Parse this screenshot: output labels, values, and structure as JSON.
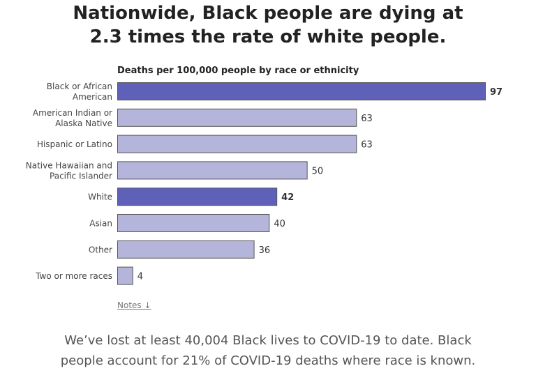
{
  "title_lines": [
    "Nationwide, Black people are dying at",
    "2.3 times the rate of white people."
  ],
  "chart_data": {
    "type": "bar",
    "orientation": "horizontal",
    "title": "Deaths per 100,000 people by race or ethnicity",
    "categories": [
      [
        "Black or African",
        "American"
      ],
      [
        "American Indian or",
        "Alaska Native"
      ],
      [
        "Hispanic or Latino"
      ],
      [
        "Native Hawaiian and",
        "Pacific Islander"
      ],
      [
        "White"
      ],
      [
        "Asian"
      ],
      [
        "Other"
      ],
      [
        "Two or more races"
      ]
    ],
    "values": [
      97,
      63,
      63,
      50,
      42,
      40,
      36,
      4
    ],
    "highlighted": [
      true,
      false,
      false,
      false,
      true,
      false,
      false,
      false
    ],
    "xlim": [
      0,
      97
    ],
    "grid": false
  },
  "colors": {
    "highlight": "#5f60b8",
    "normal": "#b5b5dc",
    "stroke": "#555"
  },
  "notes_link": "Notes ↓",
  "footer_lines": [
    "We’ve lost at least 40,004 Black lives to COVID-19 to date. Black",
    "people account for 21% of COVID-19 deaths where race is known."
  ]
}
